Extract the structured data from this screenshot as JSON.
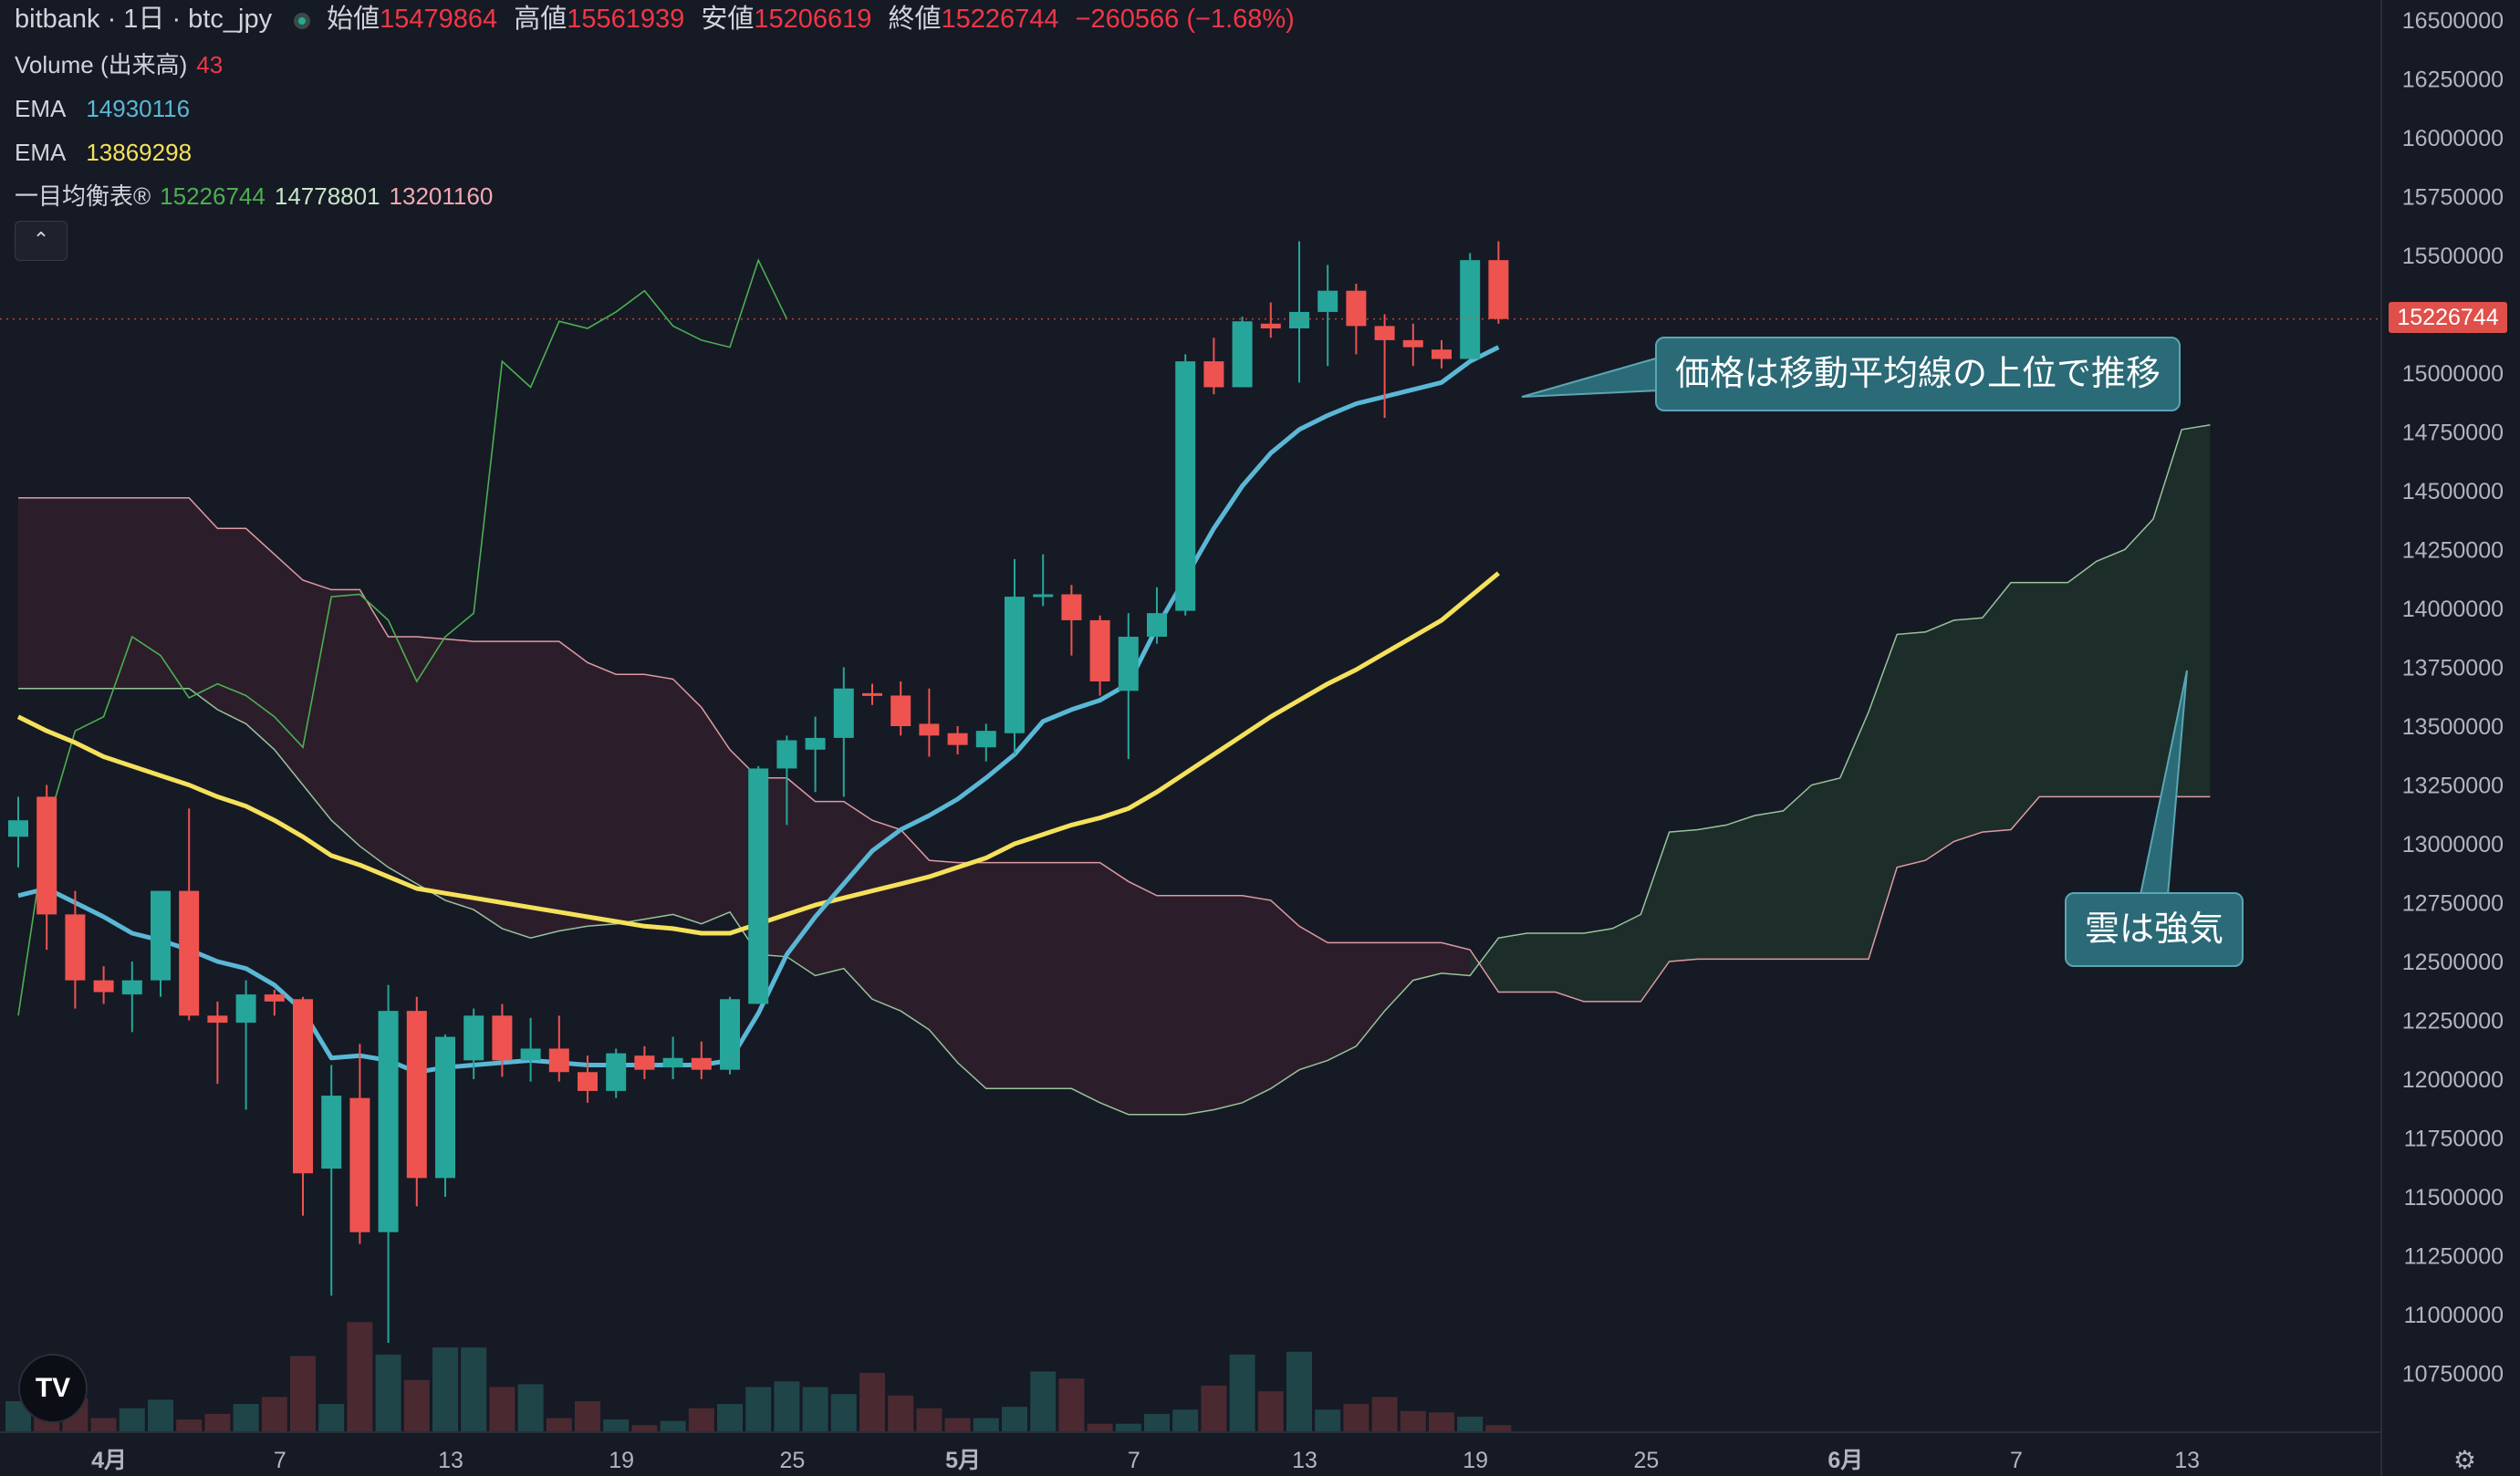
{
  "header": {
    "title": "bitbank · 1日 · btc_jpy",
    "ohlc": [
      {
        "label": "始値",
        "value": "15479864"
      },
      {
        "label": "高値",
        "value": "15561939"
      },
      {
        "label": "安値",
        "value": "15206619"
      },
      {
        "label": "終値",
        "value": "15226744"
      }
    ],
    "change": "−260566 (−1.68%)"
  },
  "legend": {
    "volume": {
      "label": "Volume (出来高)",
      "value": "43"
    },
    "ema1": {
      "label": "EMA",
      "value": "14930116",
      "color": "#5ab8d6"
    },
    "ema2": {
      "label": "EMA",
      "value": "13869298",
      "color": "#f5e15b"
    },
    "ichimoku": {
      "label": "一目均衡表®",
      "values": [
        "15226744",
        "14778801",
        "13201160"
      ],
      "colors": [
        "#4caf50",
        "#c8e6c9",
        "#f4a9b0"
      ]
    }
  },
  "collapse_icon": "chevron-up-icon",
  "last_price_tag": "15226744",
  "callouts": {
    "price": "価格は移動平均線の上位で推移",
    "cloud": "雲は強気"
  },
  "logo_text": "TV",
  "settings_icon": "gear-icon",
  "colors": {
    "background": "#161a25",
    "up": "#26a69a",
    "down": "#ef5350",
    "grid": "#1f2430"
  },
  "chart_data": {
    "type": "candlestick",
    "y_axis": {
      "ticks": [
        10750000,
        11000000,
        11250000,
        11500000,
        11750000,
        12000000,
        12250000,
        12500000,
        12750000,
        13000000,
        13250000,
        13500000,
        13750000,
        14000000,
        14250000,
        14500000,
        14750000,
        15000000,
        15250000,
        15500000,
        15750000,
        16000000,
        16250000,
        16500000
      ],
      "range": [
        10600000,
        16600000
      ],
      "side": "right"
    },
    "x_axis": {
      "ticks": [
        {
          "day": 3,
          "label": "4月",
          "bold": true
        },
        {
          "day": 9,
          "label": "7"
        },
        {
          "day": 15,
          "label": "13"
        },
        {
          "day": 21,
          "label": "19"
        },
        {
          "day": 27,
          "label": "25"
        },
        {
          "day": 33,
          "label": "5月",
          "bold": true
        },
        {
          "day": 39,
          "label": "7"
        },
        {
          "day": 45,
          "label": "13"
        },
        {
          "day": 51,
          "label": "19"
        },
        {
          "day": 57,
          "label": "25"
        },
        {
          "day": 64,
          "label": "6月",
          "bold": true
        },
        {
          "day": 70,
          "label": "7"
        },
        {
          "day": 76,
          "label": "13"
        }
      ]
    },
    "candles": [
      [
        0,
        13030000,
        13100000,
        12900000,
        13200000
      ],
      [
        1,
        13200000,
        12700000,
        12550000,
        13250000
      ],
      [
        2,
        12700000,
        12420000,
        12300000,
        12800000
      ],
      [
        3,
        12420000,
        12370000,
        12320000,
        12480000
      ],
      [
        4,
        12360000,
        12420000,
        12200000,
        12500000
      ],
      [
        5,
        12420000,
        12800000,
        12350000,
        12800000
      ],
      [
        6,
        12800000,
        12270000,
        12250000,
        13150000
      ],
      [
        7,
        12270000,
        12240000,
        11980000,
        12330000
      ],
      [
        8,
        12240000,
        12360000,
        11870000,
        12420000
      ],
      [
        9,
        12360000,
        12330000,
        12270000,
        12380000
      ],
      [
        10,
        12340000,
        11600000,
        11420000,
        12350000
      ],
      [
        11,
        11620000,
        11930000,
        11080000,
        12060000
      ],
      [
        12,
        11920000,
        11350000,
        11300000,
        12150000
      ],
      [
        13,
        11350000,
        12290000,
        10880000,
        12400000
      ],
      [
        14,
        12290000,
        11580000,
        11460000,
        12350000
      ],
      [
        15,
        11580000,
        12180000,
        11500000,
        12190000
      ],
      [
        16,
        12080000,
        12270000,
        12000000,
        12300000
      ],
      [
        17,
        12270000,
        12080000,
        12010000,
        12320000
      ],
      [
        18,
        12080000,
        12130000,
        11990000,
        12260000
      ],
      [
        19,
        12130000,
        12030000,
        11990000,
        12270000
      ],
      [
        20,
        12030000,
        11950000,
        11900000,
        12100000
      ],
      [
        21,
        11950000,
        12110000,
        11920000,
        12130000
      ],
      [
        22,
        12100000,
        12040000,
        12000000,
        12140000
      ],
      [
        23,
        12050000,
        12090000,
        12000000,
        12180000
      ],
      [
        24,
        12090000,
        12040000,
        12000000,
        12160000
      ],
      [
        25,
        12040000,
        12340000,
        12020000,
        12350000
      ],
      [
        26,
        12320000,
        13320000,
        12320000,
        13330000
      ],
      [
        27,
        13320000,
        13440000,
        13080000,
        13460000
      ],
      [
        28,
        13400000,
        13450000,
        13220000,
        13540000
      ],
      [
        29,
        13450000,
        13660000,
        13200000,
        13750000
      ],
      [
        30,
        13640000,
        13630000,
        13590000,
        13680000
      ],
      [
        31,
        13630000,
        13500000,
        13460000,
        13690000
      ],
      [
        32,
        13510000,
        13460000,
        13370000,
        13660000
      ],
      [
        33,
        13470000,
        13420000,
        13380000,
        13500000
      ],
      [
        34,
        13410000,
        13480000,
        13350000,
        13510000
      ],
      [
        35,
        13470000,
        14050000,
        13380000,
        14210000
      ],
      [
        36,
        14050000,
        14060000,
        14010000,
        14230000
      ],
      [
        37,
        14060000,
        13950000,
        13800000,
        14100000
      ],
      [
        38,
        13950000,
        13690000,
        13630000,
        13970000
      ],
      [
        39,
        13650000,
        13880000,
        13360000,
        13980000
      ],
      [
        40,
        13880000,
        13980000,
        13850000,
        14090000
      ],
      [
        41,
        13990000,
        15050000,
        13970000,
        15080000
      ],
      [
        42,
        15050000,
        14940000,
        14910000,
        15150000
      ],
      [
        43,
        14940000,
        15220000,
        14940000,
        15240000
      ],
      [
        44,
        15210000,
        15190000,
        15150000,
        15300000
      ],
      [
        45,
        15190000,
        15260000,
        14960000,
        15560000
      ],
      [
        46,
        15260000,
        15350000,
        15030000,
        15460000
      ],
      [
        47,
        15350000,
        15200000,
        15080000,
        15380000
      ],
      [
        48,
        15200000,
        15140000,
        14810000,
        15250000
      ],
      [
        49,
        15140000,
        15110000,
        15030000,
        15210000
      ],
      [
        50,
        15100000,
        15060000,
        15020000,
        15140000
      ],
      [
        51,
        15060000,
        15480000,
        15060000,
        15510000
      ],
      [
        52,
        15480000,
        15230000,
        15210000,
        15560000
      ]
    ],
    "volume": {
      "range_top": 11100000,
      "values": [
        0.22,
        0.34,
        0.24,
        0.1,
        0.17,
        0.23,
        0.09,
        0.13,
        0.2,
        0.25,
        0.54,
        0.2,
        0.78,
        0.55,
        0.37,
        0.6,
        0.6,
        0.32,
        0.34,
        0.1,
        0.22,
        0.09,
        0.05,
        0.08,
        0.17,
        0.2,
        0.32,
        0.36,
        0.32,
        0.27,
        0.42,
        0.26,
        0.17,
        0.1,
        0.1,
        0.18,
        0.43,
        0.38,
        0.06,
        0.06,
        0.13,
        0.16,
        0.33,
        0.55,
        0.29,
        0.57,
        0.16,
        0.2,
        0.25,
        0.15,
        0.14,
        0.11,
        0.05
      ],
      "up_color": "#1f4549",
      "down_color": "#4a2a30"
    },
    "ema_fast": [
      12780,
      12810,
      12750,
      12690,
      12620,
      12590,
      12550,
      12500,
      12470,
      12400,
      12290,
      12090,
      12100,
      12080,
      12030,
      12050,
      12060,
      12070,
      12080,
      12070,
      12060,
      12060,
      12060,
      12060,
      12060,
      12080,
      12280,
      12530,
      12690,
      12830,
      12970,
      13060,
      13120,
      13190,
      13280,
      13380,
      13520,
      13570,
      13610,
      13680,
      13920,
      14130,
      14340,
      14520,
      14660,
      14760,
      14820,
      14870,
      14900,
      14930,
      14960,
      15050,
      15110
    ],
    "ema_slow": [
      13540,
      13480,
      13430,
      13370,
      13330,
      13290,
      13250,
      13200,
      13160,
      13100,
      13030,
      12950,
      12910,
      12860,
      12810,
      12790,
      12770,
      12750,
      12730,
      12710,
      12690,
      12670,
      12650,
      12640,
      12620,
      12620,
      12660,
      12700,
      12740,
      12770,
      12800,
      12830,
      12860,
      12900,
      12940,
      13000,
      13040,
      13080,
      13110,
      13150,
      13220,
      13300,
      13380,
      13460,
      13540,
      13610,
      13680,
      13740,
      13810,
      13880,
      13950,
      14050,
      14150
    ],
    "chikou_days": [
      0,
      1,
      2,
      3,
      4,
      5,
      6,
      7,
      8,
      9,
      10,
      11,
      12,
      13,
      14,
      15,
      16,
      17,
      18,
      19,
      20,
      21,
      22,
      23,
      24,
      25,
      26,
      27
    ],
    "chikou": [
      12270,
      13070,
      13480,
      13540,
      13880,
      13800,
      13620,
      13680,
      13630,
      13540,
      13410,
      14050,
      14060,
      13950,
      13690,
      13880,
      13980,
      15050,
      14940,
      15220,
      15190,
      15260,
      15350,
      15200,
      15140,
      15110,
      15480,
      15230
    ],
    "cloud_days": [
      0,
      6,
      7,
      8,
      9,
      10,
      11,
      12,
      13,
      14,
      15,
      16,
      17,
      18,
      19,
      20,
      21,
      22,
      23,
      24,
      25,
      26,
      27,
      28,
      29,
      30,
      31,
      32,
      33,
      34,
      35,
      36,
      37,
      38,
      39,
      40,
      41,
      42,
      43,
      44,
      45,
      46,
      47,
      48,
      49,
      50,
      51,
      52,
      53,
      54,
      55,
      56,
      57,
      58,
      59,
      60,
      61,
      62,
      63,
      64,
      65,
      66,
      67,
      68,
      69,
      70,
      71,
      72,
      73,
      74,
      75,
      76,
      77
    ],
    "senkou_a": [
      13660,
      13660,
      13570,
      13510,
      13400,
      13250,
      13100,
      12990,
      12900,
      12830,
      12760,
      12720,
      12640,
      12600,
      12630,
      12650,
      12660,
      12680,
      12700,
      12660,
      12710,
      12530,
      12520,
      12440,
      12470,
      12340,
      12290,
      12210,
      12070,
      11960,
      11960,
      11960,
      11960,
      11900,
      11850,
      11850,
      11850,
      11870,
      11900,
      11960,
      12040,
      12080,
      12140,
      12290,
      12420,
      12450,
      12440,
      12600,
      12620,
      12620,
      12620,
      12640,
      12700,
      13050,
      13060,
      13080,
      13120,
      13140,
      13250,
      13280,
      13560,
      13890,
      13900,
      13950,
      13960,
      14110,
      14110,
      14110,
      14200,
      14250,
      14380,
      14760,
      14780
    ],
    "senkou_b": [
      14470,
      14470,
      14340,
      14340,
      14230,
      14120,
      14080,
      14080,
      13880,
      13880,
      13870,
      13860,
      13860,
      13860,
      13860,
      13770,
      13720,
      13720,
      13700,
      13580,
      13400,
      13280,
      13280,
      13180,
      13180,
      13100,
      13060,
      12930,
      12920,
      12920,
      12920,
      12920,
      12920,
      12920,
      12840,
      12780,
      12780,
      12780,
      12780,
      12760,
      12650,
      12580,
      12580,
      12580,
      12580,
      12580,
      12550,
      12370,
      12370,
      12370,
      12330,
      12330,
      12330,
      12500,
      12510,
      12510,
      12510,
      12510,
      12510,
      12510,
      12510,
      12900,
      12930,
      13010,
      13050,
      13060,
      13200,
      13200,
      13200,
      13200,
      13200,
      13200,
      13200
    ]
  }
}
